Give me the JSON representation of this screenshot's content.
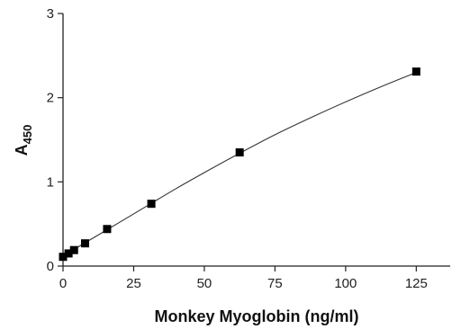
{
  "chart_data": {
    "type": "scatter",
    "title": "",
    "xlabel": "Monkey Myoglobin (ng/ml)",
    "ylabel_main": "A",
    "ylabel_sub": "450",
    "xlim": [
      0,
      137
    ],
    "ylim": [
      0,
      3
    ],
    "xticks": [
      0,
      25,
      50,
      75,
      100,
      125
    ],
    "yticks": [
      0,
      1,
      2,
      3
    ],
    "grid": false,
    "legend": "none",
    "points": [
      {
        "x": 0,
        "y": 0.11
      },
      {
        "x": 1.95,
        "y": 0.15
      },
      {
        "x": 3.9,
        "y": 0.19
      },
      {
        "x": 7.8,
        "y": 0.27
      },
      {
        "x": 15.6,
        "y": 0.44
      },
      {
        "x": 31.25,
        "y": 0.74
      },
      {
        "x": 62.5,
        "y": 1.35
      },
      {
        "x": 125,
        "y": 2.31
      }
    ],
    "fit_curve": [
      {
        "x": 0,
        "y": 0.11
      },
      {
        "x": 5,
        "y": 0.22
      },
      {
        "x": 10,
        "y": 0.32
      },
      {
        "x": 20,
        "y": 0.52
      },
      {
        "x": 30,
        "y": 0.72
      },
      {
        "x": 40,
        "y": 0.92
      },
      {
        "x": 50,
        "y": 1.11
      },
      {
        "x": 62.5,
        "y": 1.34
      },
      {
        "x": 75,
        "y": 1.56
      },
      {
        "x": 87.5,
        "y": 1.76
      },
      {
        "x": 100,
        "y": 1.95
      },
      {
        "x": 112.5,
        "y": 2.13
      },
      {
        "x": 125,
        "y": 2.3
      }
    ],
    "colors": {
      "points": "#000000",
      "curve": "#333333",
      "axes": "#222222"
    }
  }
}
